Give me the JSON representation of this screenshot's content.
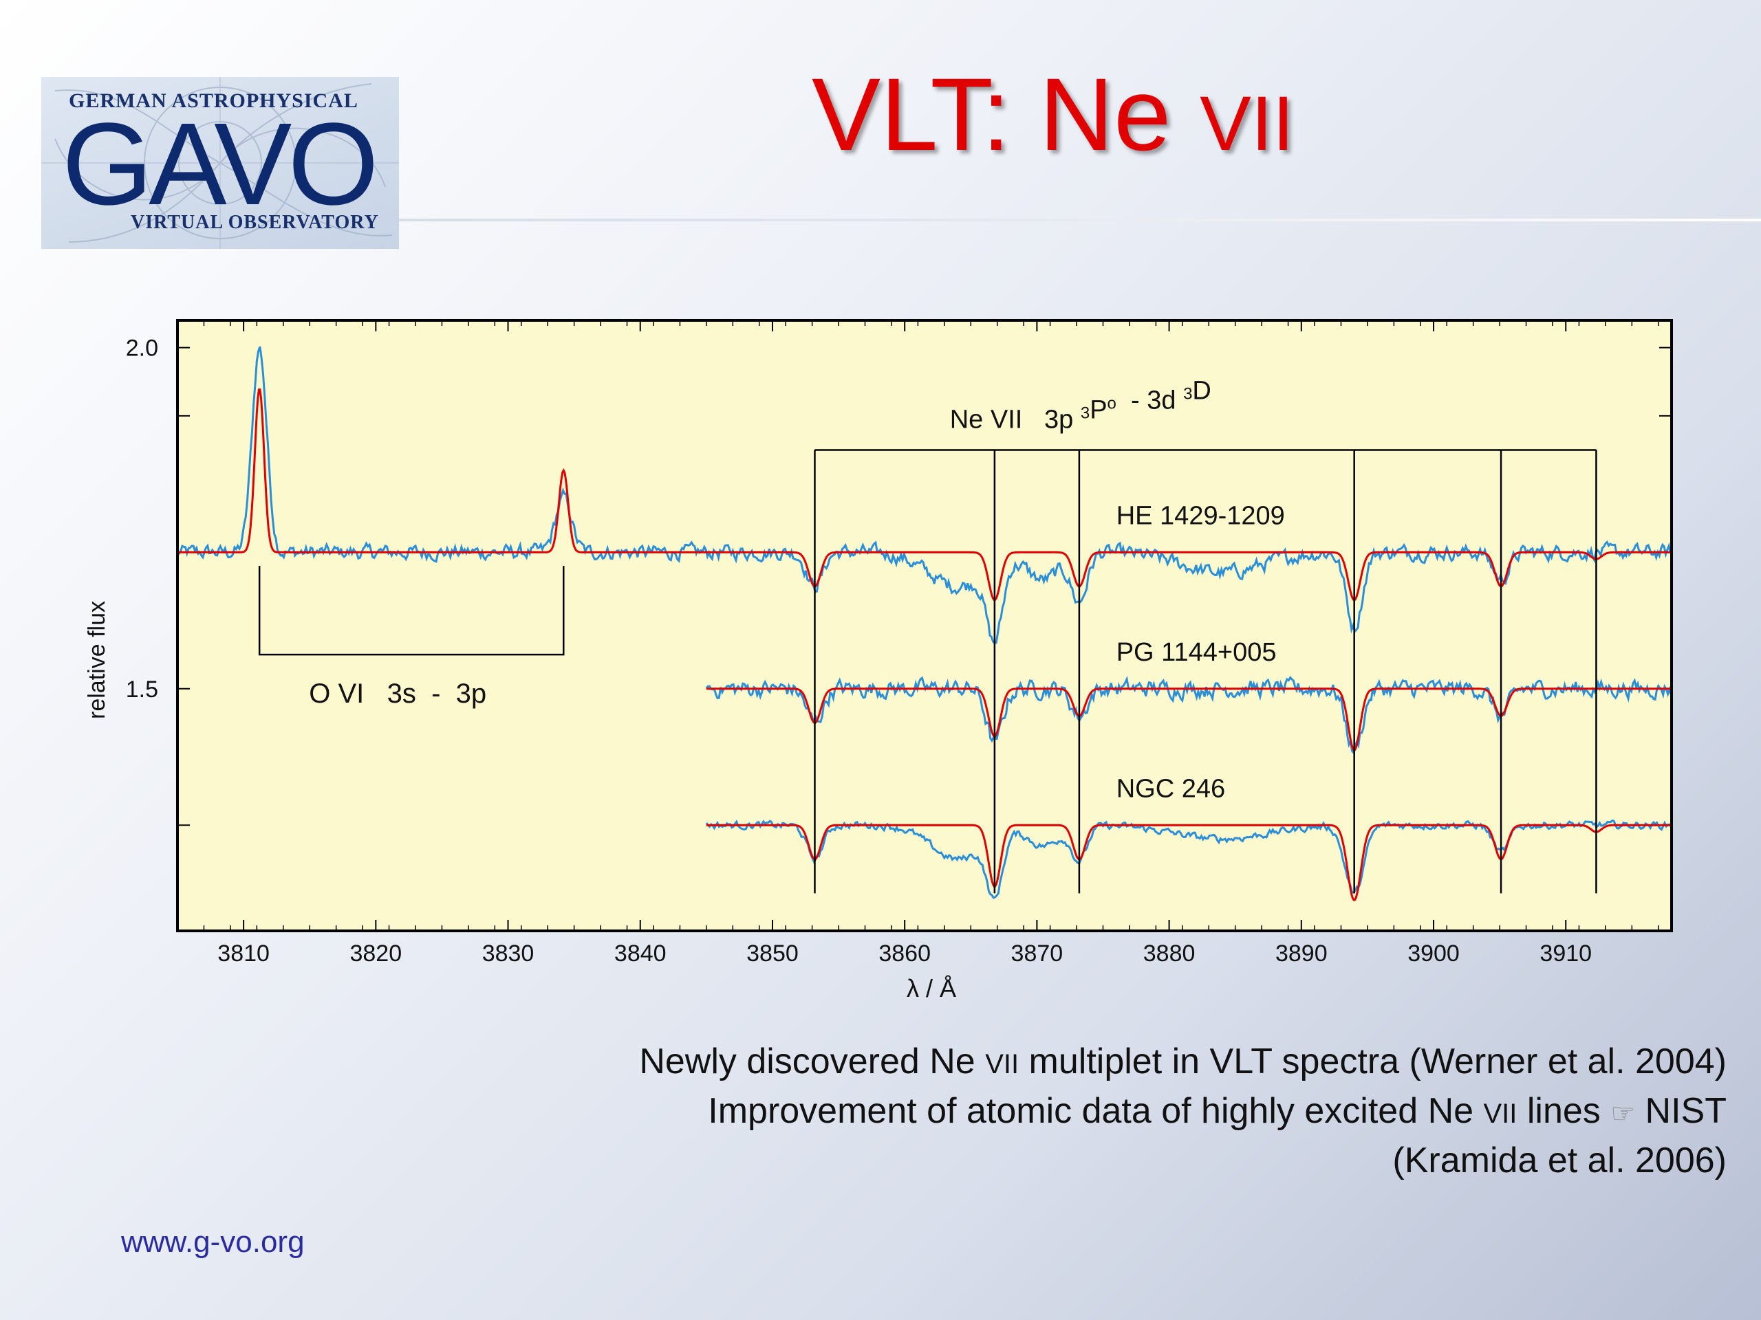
{
  "logo": {
    "top_text": "GERMAN ASTROPHYSICAL",
    "big_text": "GAVO",
    "bottom_text": "VIRTUAL OBSERVATORY"
  },
  "title": {
    "main": "VLT: Ne ",
    "roman": "VII"
  },
  "caption": {
    "line1_pre": "Newly discovered Ne ",
    "line1_roman": "VII",
    "line1_post": " multiplet in VLT spectra (Werner et al. 2004)",
    "line2_pre": "Improvement of atomic data of highly excited Ne ",
    "line2_roman": "VII",
    "line2_post": " lines ",
    "line2_symbol": "☞",
    "line2_end": " NIST",
    "line3": "(Kramida et al. 2006)"
  },
  "footer": {
    "url": "www.g-vo.org"
  },
  "colors": {
    "title": "#e00000",
    "plot_background": "#fdf9cf",
    "observed": "#2b8fd8",
    "model": "#e00000",
    "url": "#2b2ba0"
  },
  "chart_data": {
    "type": "line",
    "xlabel": "λ / Å",
    "ylabel": "relative flux",
    "xlim": [
      3805,
      3918
    ],
    "ylim": [
      1.145,
      2.04
    ],
    "xticks": [
      3810,
      3820,
      3830,
      3840,
      3850,
      3860,
      3870,
      3880,
      3890,
      3900,
      3910
    ],
    "yticks_labeled": [
      1.5,
      2.0
    ],
    "yticks_minor": [
      1.3,
      1.5,
      1.7,
      1.9,
      2.0
    ],
    "series": [
      {
        "name": "HE 1429-1209",
        "continuum": 1.7,
        "x_range": [
          3805,
          3918
        ],
        "observed_noise": 0.012,
        "observed_features": [
          {
            "type": "emission",
            "x": 3811.2,
            "depth": 0.3,
            "width": 0.55
          },
          {
            "type": "emission",
            "x": 3834.2,
            "depth": 0.08,
            "width": 0.6
          },
          {
            "type": "absorption",
            "x": 3853.2,
            "depth": 0.05,
            "width": 0.6
          },
          {
            "type": "absorption",
            "x": 3864.0,
            "depth": 0.05,
            "width": 2.2
          },
          {
            "type": "absorption",
            "x": 3866.8,
            "depth": 0.11,
            "width": 0.6
          },
          {
            "type": "absorption",
            "x": 3870.5,
            "depth": 0.04,
            "width": 1.2
          },
          {
            "type": "absorption",
            "x": 3873.2,
            "depth": 0.07,
            "width": 0.6
          },
          {
            "type": "absorption",
            "x": 3884.0,
            "depth": 0.03,
            "width": 3.0
          },
          {
            "type": "absorption",
            "x": 3894.0,
            "depth": 0.11,
            "width": 0.6
          },
          {
            "type": "absorption",
            "x": 3905.1,
            "depth": 0.04,
            "width": 0.6
          }
        ],
        "model_lines": [
          {
            "x": 3811.2,
            "depth": -0.24,
            "width": 0.35
          },
          {
            "x": 3834.2,
            "depth": -0.12,
            "width": 0.35
          },
          {
            "x": 3853.2,
            "depth": 0.05,
            "width": 0.45
          },
          {
            "x": 3866.8,
            "depth": 0.07,
            "width": 0.45
          },
          {
            "x": 3873.2,
            "depth": 0.05,
            "width": 0.45
          },
          {
            "x": 3894.0,
            "depth": 0.07,
            "width": 0.45
          },
          {
            "x": 3905.1,
            "depth": 0.05,
            "width": 0.45
          },
          {
            "x": 3912.3,
            "depth": 0.01,
            "width": 0.4
          }
        ]
      },
      {
        "name": "PG 1144+005",
        "continuum": 1.5,
        "x_range": [
          3845,
          3918
        ],
        "observed_noise": 0.014,
        "observed_features": [
          {
            "type": "absorption",
            "x": 3853.2,
            "depth": 0.05,
            "width": 0.6
          },
          {
            "type": "absorption",
            "x": 3866.8,
            "depth": 0.08,
            "width": 0.6
          },
          {
            "type": "absorption",
            "x": 3873.2,
            "depth": 0.04,
            "width": 0.6
          },
          {
            "type": "absorption",
            "x": 3894.0,
            "depth": 0.09,
            "width": 0.6
          },
          {
            "type": "absorption",
            "x": 3905.1,
            "depth": 0.04,
            "width": 0.6
          }
        ],
        "model_lines": [
          {
            "x": 3853.2,
            "depth": 0.05,
            "width": 0.45
          },
          {
            "x": 3866.8,
            "depth": 0.07,
            "width": 0.45
          },
          {
            "x": 3873.2,
            "depth": 0.04,
            "width": 0.45
          },
          {
            "x": 3894.0,
            "depth": 0.09,
            "width": 0.45
          },
          {
            "x": 3905.1,
            "depth": 0.04,
            "width": 0.45
          }
        ]
      },
      {
        "name": "NGC 246",
        "continuum": 1.3,
        "x_range": [
          3845,
          3918
        ],
        "observed_noise": 0.006,
        "observed_features": [
          {
            "type": "absorption",
            "x": 3853.2,
            "depth": 0.05,
            "width": 0.6
          },
          {
            "type": "absorption",
            "x": 3864.0,
            "depth": 0.05,
            "width": 2.0
          },
          {
            "type": "absorption",
            "x": 3866.8,
            "depth": 0.09,
            "width": 0.6
          },
          {
            "type": "absorption",
            "x": 3870.5,
            "depth": 0.03,
            "width": 1.2
          },
          {
            "type": "absorption",
            "x": 3873.2,
            "depth": 0.05,
            "width": 0.6
          },
          {
            "type": "absorption",
            "x": 3884.0,
            "depth": 0.02,
            "width": 3.5
          },
          {
            "type": "absorption",
            "x": 3894.0,
            "depth": 0.1,
            "width": 0.7
          },
          {
            "type": "absorption",
            "x": 3905.1,
            "depth": 0.04,
            "width": 0.6
          }
        ],
        "model_lines": [
          {
            "x": 3853.2,
            "depth": 0.05,
            "width": 0.45
          },
          {
            "x": 3866.8,
            "depth": 0.09,
            "width": 0.45
          },
          {
            "x": 3873.2,
            "depth": 0.05,
            "width": 0.45
          },
          {
            "x": 3894.0,
            "depth": 0.11,
            "width": 0.5
          },
          {
            "x": 3905.1,
            "depth": 0.05,
            "width": 0.45
          },
          {
            "x": 3912.3,
            "depth": 0.01,
            "width": 0.4
          }
        ]
      }
    ],
    "annotations": {
      "ne_vii": {
        "label_pre": "Ne VII   3p ",
        "sup1": "3",
        "label_mid": "P",
        "sup2": "o",
        "label_dash": "  - 3d ",
        "sup3": "3",
        "label_end": "D",
        "bracket_y": 1.85,
        "bracket_bottom": 1.2,
        "lines_x": [
          3853.2,
          3866.8,
          3873.2,
          3894.0,
          3905.1,
          3912.3
        ]
      },
      "o_vi": {
        "label": "O VI   3s  -  3p",
        "x_from": 3811.2,
        "x_to": 3834.2,
        "bracket_y": 1.55,
        "bracket_top": 1.68
      }
    }
  }
}
